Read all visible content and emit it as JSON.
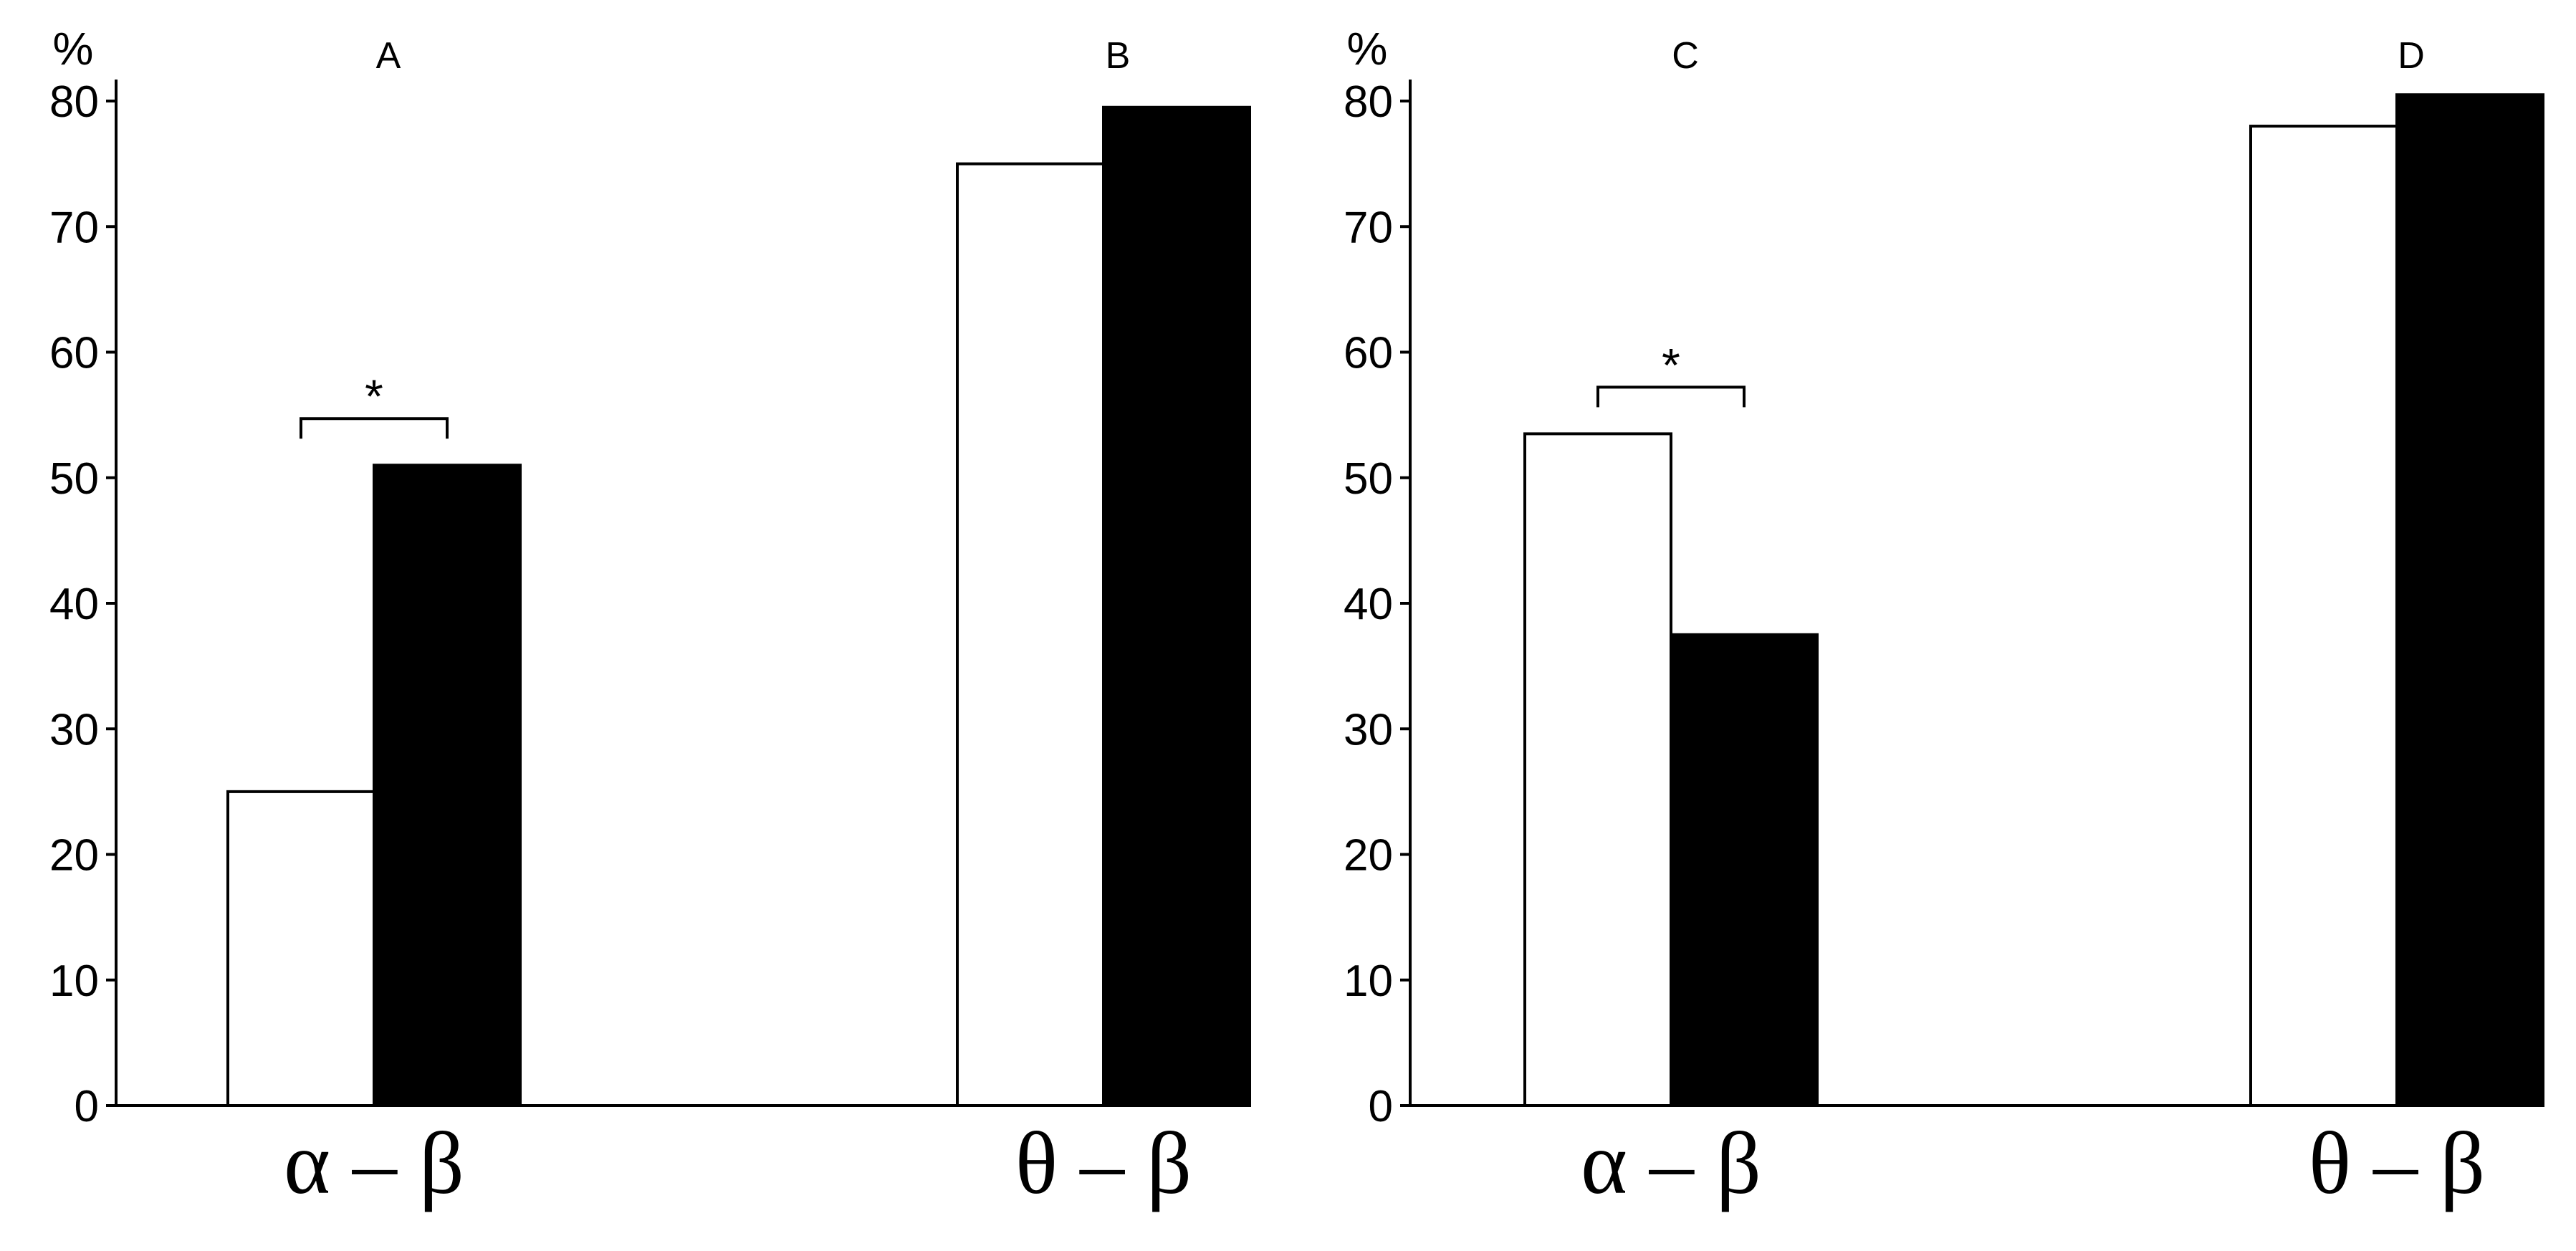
{
  "chart_data": [
    {
      "type": "bar",
      "ylabel": "%",
      "ylim": [
        0,
        80
      ],
      "yticks": [
        "0",
        "10",
        "20",
        "30",
        "40",
        "50",
        "60",
        "70",
        "80"
      ],
      "categories": [
        "α – β",
        "θ – β"
      ],
      "category_panels": [
        "A",
        "B"
      ],
      "series": [
        {
          "fill": "#ffffff",
          "values": [
            25,
            75
          ]
        },
        {
          "fill": "#000000",
          "values": [
            51,
            79.5
          ]
        }
      ],
      "significance": [
        {
          "category": 0,
          "label": "*"
        }
      ]
    },
    {
      "type": "bar",
      "ylabel": "%",
      "ylim": [
        0,
        80
      ],
      "yticks": [
        "0",
        "10",
        "20",
        "30",
        "40",
        "50",
        "60",
        "70",
        "80"
      ],
      "categories": [
        "α – β",
        "θ – β"
      ],
      "category_panels": [
        "C",
        "D"
      ],
      "series": [
        {
          "fill": "#ffffff",
          "values": [
            53.5,
            78
          ]
        },
        {
          "fill": "#000000",
          "values": [
            37.5,
            80.5
          ]
        }
      ],
      "significance": [
        {
          "category": 0,
          "label": "*"
        }
      ]
    }
  ]
}
